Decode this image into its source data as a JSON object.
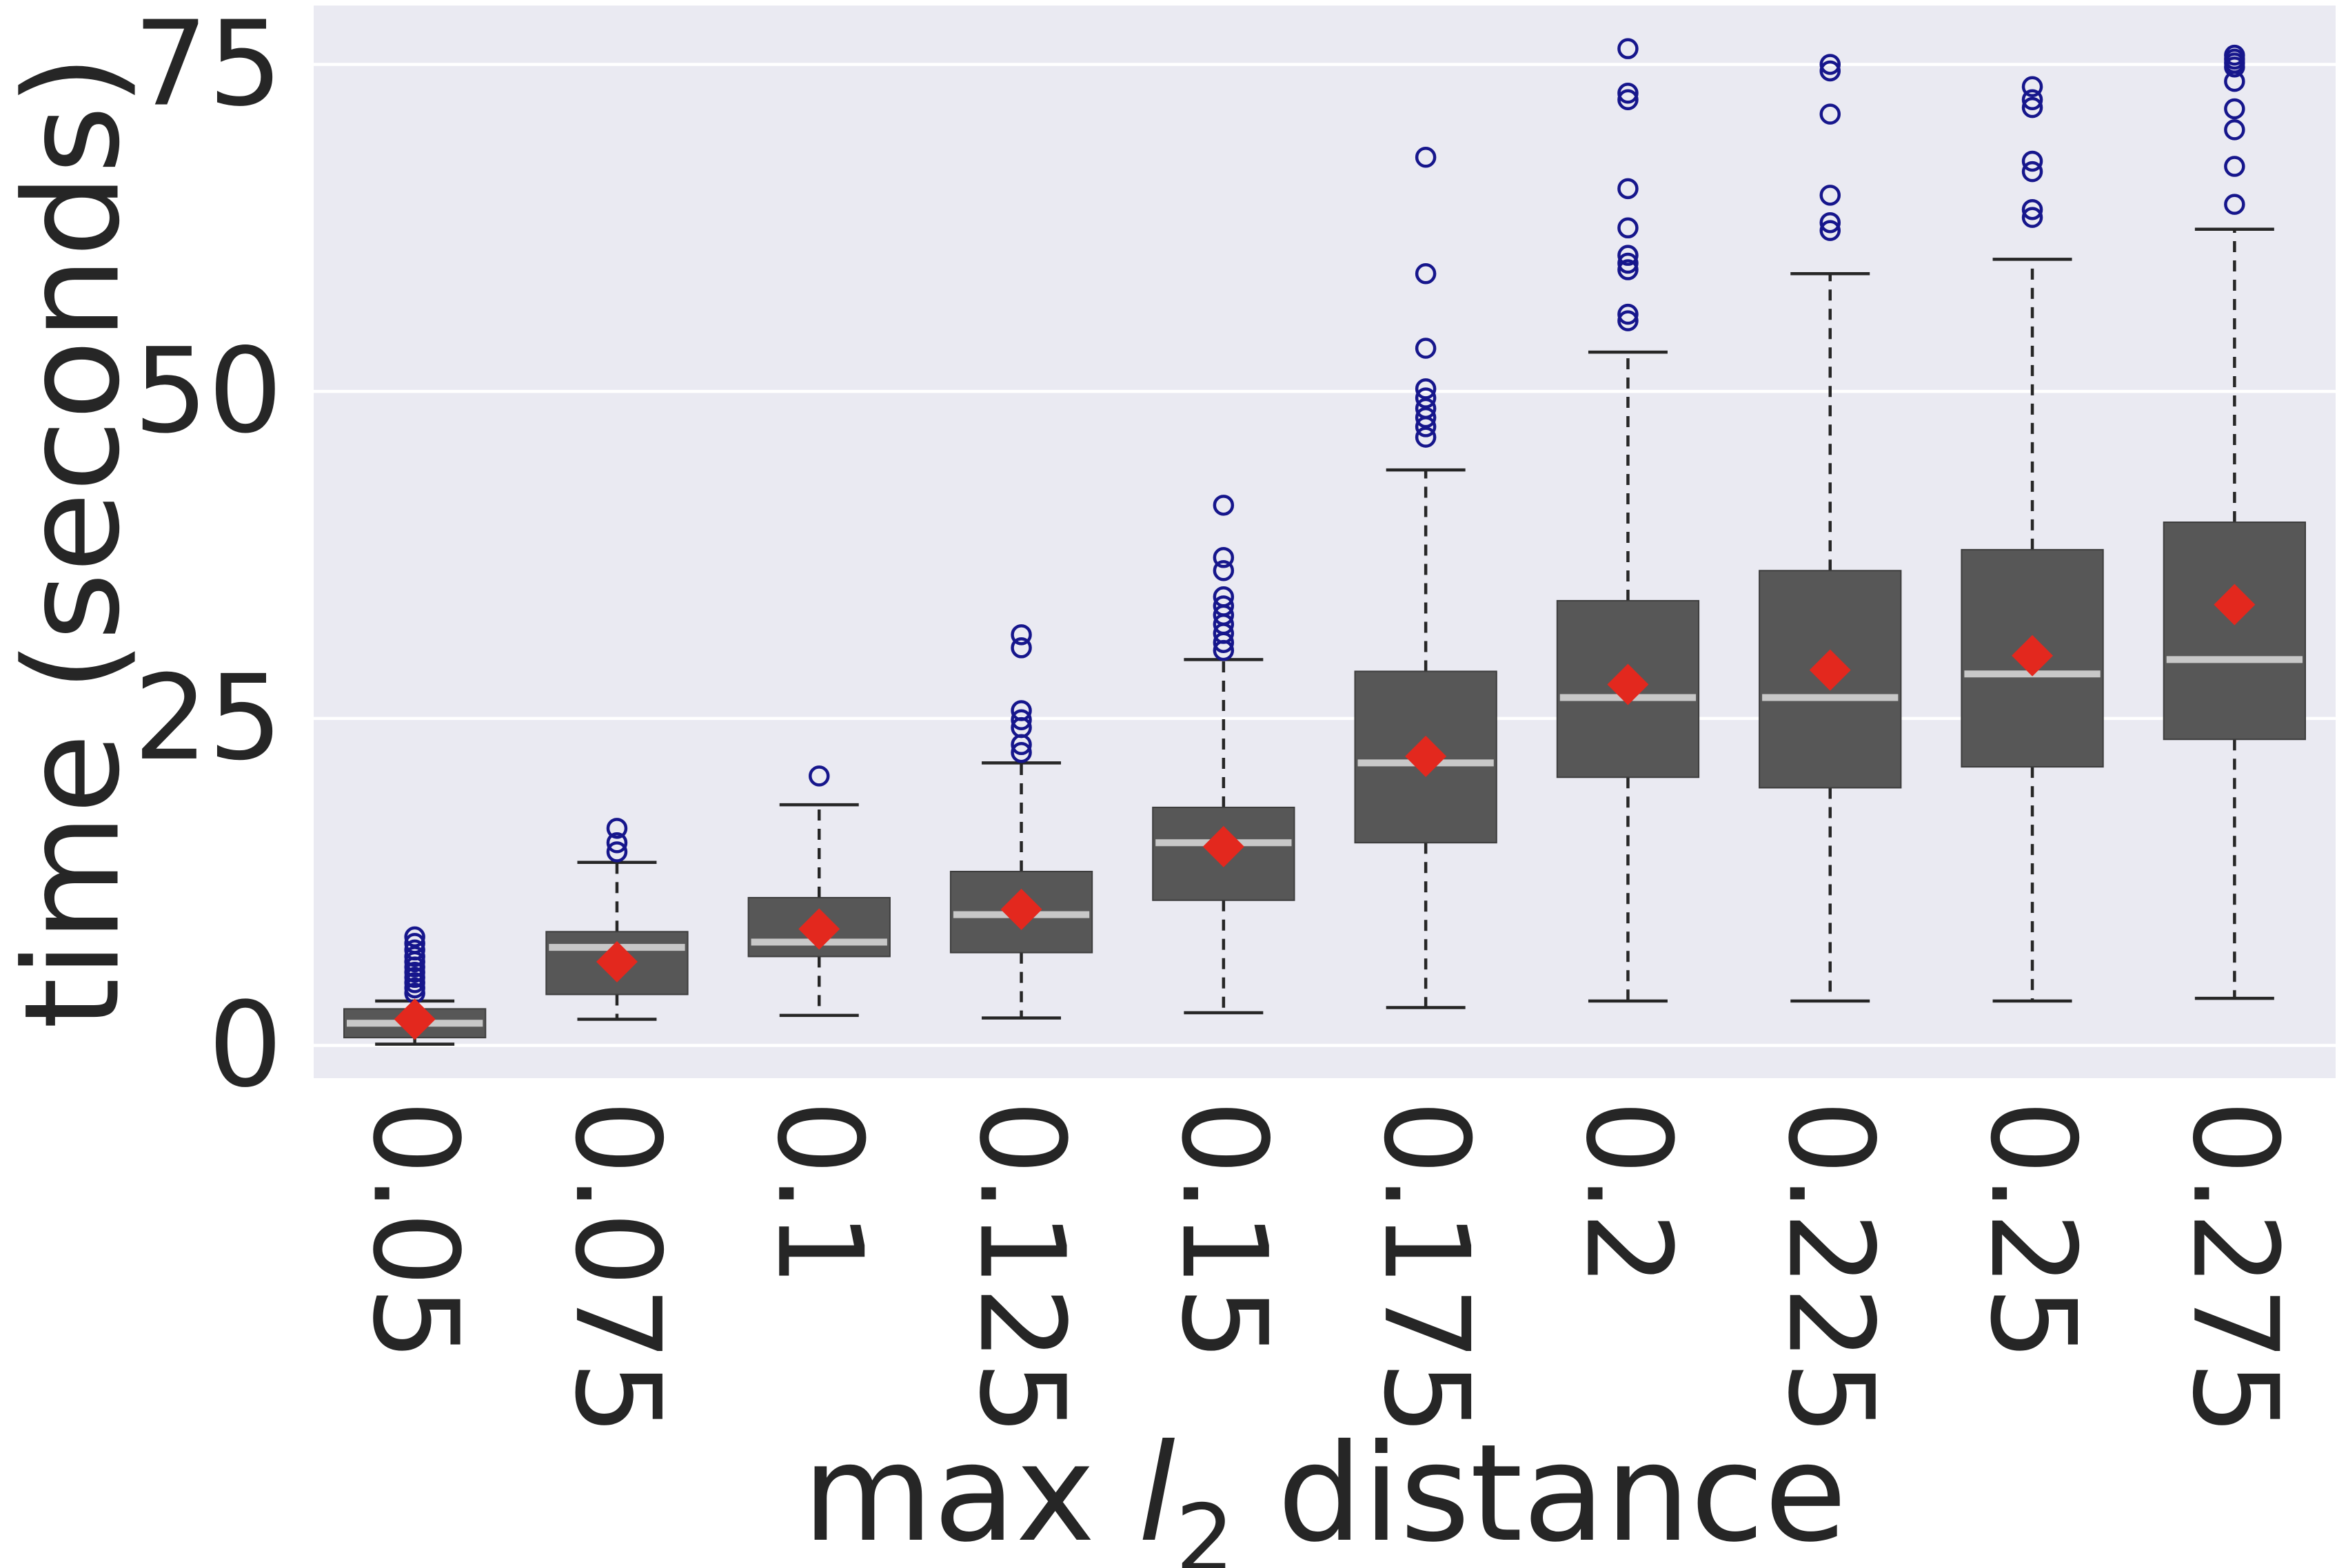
{
  "figure": {
    "background": "#ffffff",
    "plot_background": "#eaeaf2",
    "grid_color": "#ffffff",
    "text_color": "#262626"
  },
  "chart_data": {
    "type": "boxplot",
    "title": "",
    "ylabel": "time (seconds)",
    "xlabel_parts": {
      "prefix": "max ",
      "italic_var": "l",
      "subscript": "2",
      "suffix": " distance"
    },
    "yticks": [
      0,
      25,
      50,
      75
    ],
    "ytick_labels": [
      "0",
      "25",
      "50",
      "75"
    ],
    "ylim": [
      -2.5,
      79.5
    ],
    "grid": "horizontal",
    "legend": "none",
    "categories": [
      "0.05",
      "0.075",
      "0.1",
      "0.125",
      "0.15",
      "0.175",
      "0.2",
      "0.225",
      "0.25",
      "0.275"
    ],
    "style": {
      "box_fill": "#575757",
      "box_edge": "#3d3d3d",
      "median_color": "#c8c8c8",
      "mean_color": "#e3281e",
      "outlier_color": "#16168c",
      "whisker_color": "#262626"
    },
    "boxes": [
      {
        "category": "0.05",
        "whisker_low": 0.1,
        "q1": 0.6,
        "median": 1.7,
        "q3": 2.8,
        "whisker_high": 3.4,
        "mean": 2.0,
        "outliers": [
          4.0,
          4.4,
          4.8,
          5.2,
          5.6,
          6.0,
          6.4,
          6.8,
          7.3,
          7.8,
          8.3
        ]
      },
      {
        "category": "0.075",
        "whisker_low": 2.0,
        "q1": 3.9,
        "median": 7.5,
        "q3": 8.7,
        "whisker_high": 14.0,
        "mean": 6.4,
        "outliers": [
          14.8,
          15.5,
          16.6
        ]
      },
      {
        "category": "0.1",
        "whisker_low": 2.3,
        "q1": 6.8,
        "median": 7.9,
        "q3": 11.3,
        "whisker_high": 18.4,
        "mean": 8.9,
        "outliers": [
          20.6
        ]
      },
      {
        "category": "0.125",
        "whisker_low": 2.1,
        "q1": 7.1,
        "median": 10.0,
        "q3": 13.3,
        "whisker_high": 21.6,
        "mean": 10.4,
        "outliers": [
          22.4,
          23.0,
          24.3,
          24.9,
          25.6,
          30.4,
          31.4
        ]
      },
      {
        "category": "0.15",
        "whisker_low": 2.5,
        "q1": 11.1,
        "median": 15.5,
        "q3": 18.2,
        "whisker_high": 29.5,
        "mean": 15.2,
        "outliers": [
          30.2,
          30.8,
          31.5,
          32.2,
          32.9,
          33.6,
          34.3,
          36.3,
          37.3,
          41.3
        ]
      },
      {
        "category": "0.175",
        "whisker_low": 2.9,
        "q1": 15.5,
        "median": 21.6,
        "q3": 28.6,
        "whisker_high": 44.0,
        "mean": 22.1,
        "outliers": [
          46.5,
          47.3,
          48.0,
          48.7,
          49.5,
          50.2,
          53.3,
          59.0,
          67.9
        ]
      },
      {
        "category": "0.2",
        "whisker_low": 3.4,
        "q1": 20.5,
        "median": 26.6,
        "q3": 34.0,
        "whisker_high": 53.0,
        "mean": 27.6,
        "outliers": [
          55.4,
          55.9,
          59.3,
          59.8,
          60.4,
          62.5,
          65.5,
          72.3,
          72.8,
          76.2
        ]
      },
      {
        "category": "0.225",
        "whisker_low": 3.4,
        "q1": 19.7,
        "median": 26.6,
        "q3": 36.3,
        "whisker_high": 59.0,
        "mean": 28.7,
        "outliers": [
          62.3,
          62.9,
          65.0,
          71.2,
          74.5,
          75.0
        ]
      },
      {
        "category": "0.25",
        "whisker_low": 3.4,
        "q1": 21.3,
        "median": 28.4,
        "q3": 37.9,
        "whisker_high": 60.1,
        "mean": 29.8,
        "outliers": [
          63.3,
          63.9,
          66.8,
          67.6,
          71.7,
          72.3,
          73.3
        ]
      },
      {
        "category": "0.275",
        "whisker_low": 3.6,
        "q1": 23.4,
        "median": 29.5,
        "q3": 40.0,
        "whisker_high": 62.4,
        "mean": 33.7,
        "outliers": [
          64.3,
          67.2,
          70.0,
          71.6,
          73.7,
          74.8,
          75.1,
          75.4,
          75.7
        ]
      }
    ]
  }
}
